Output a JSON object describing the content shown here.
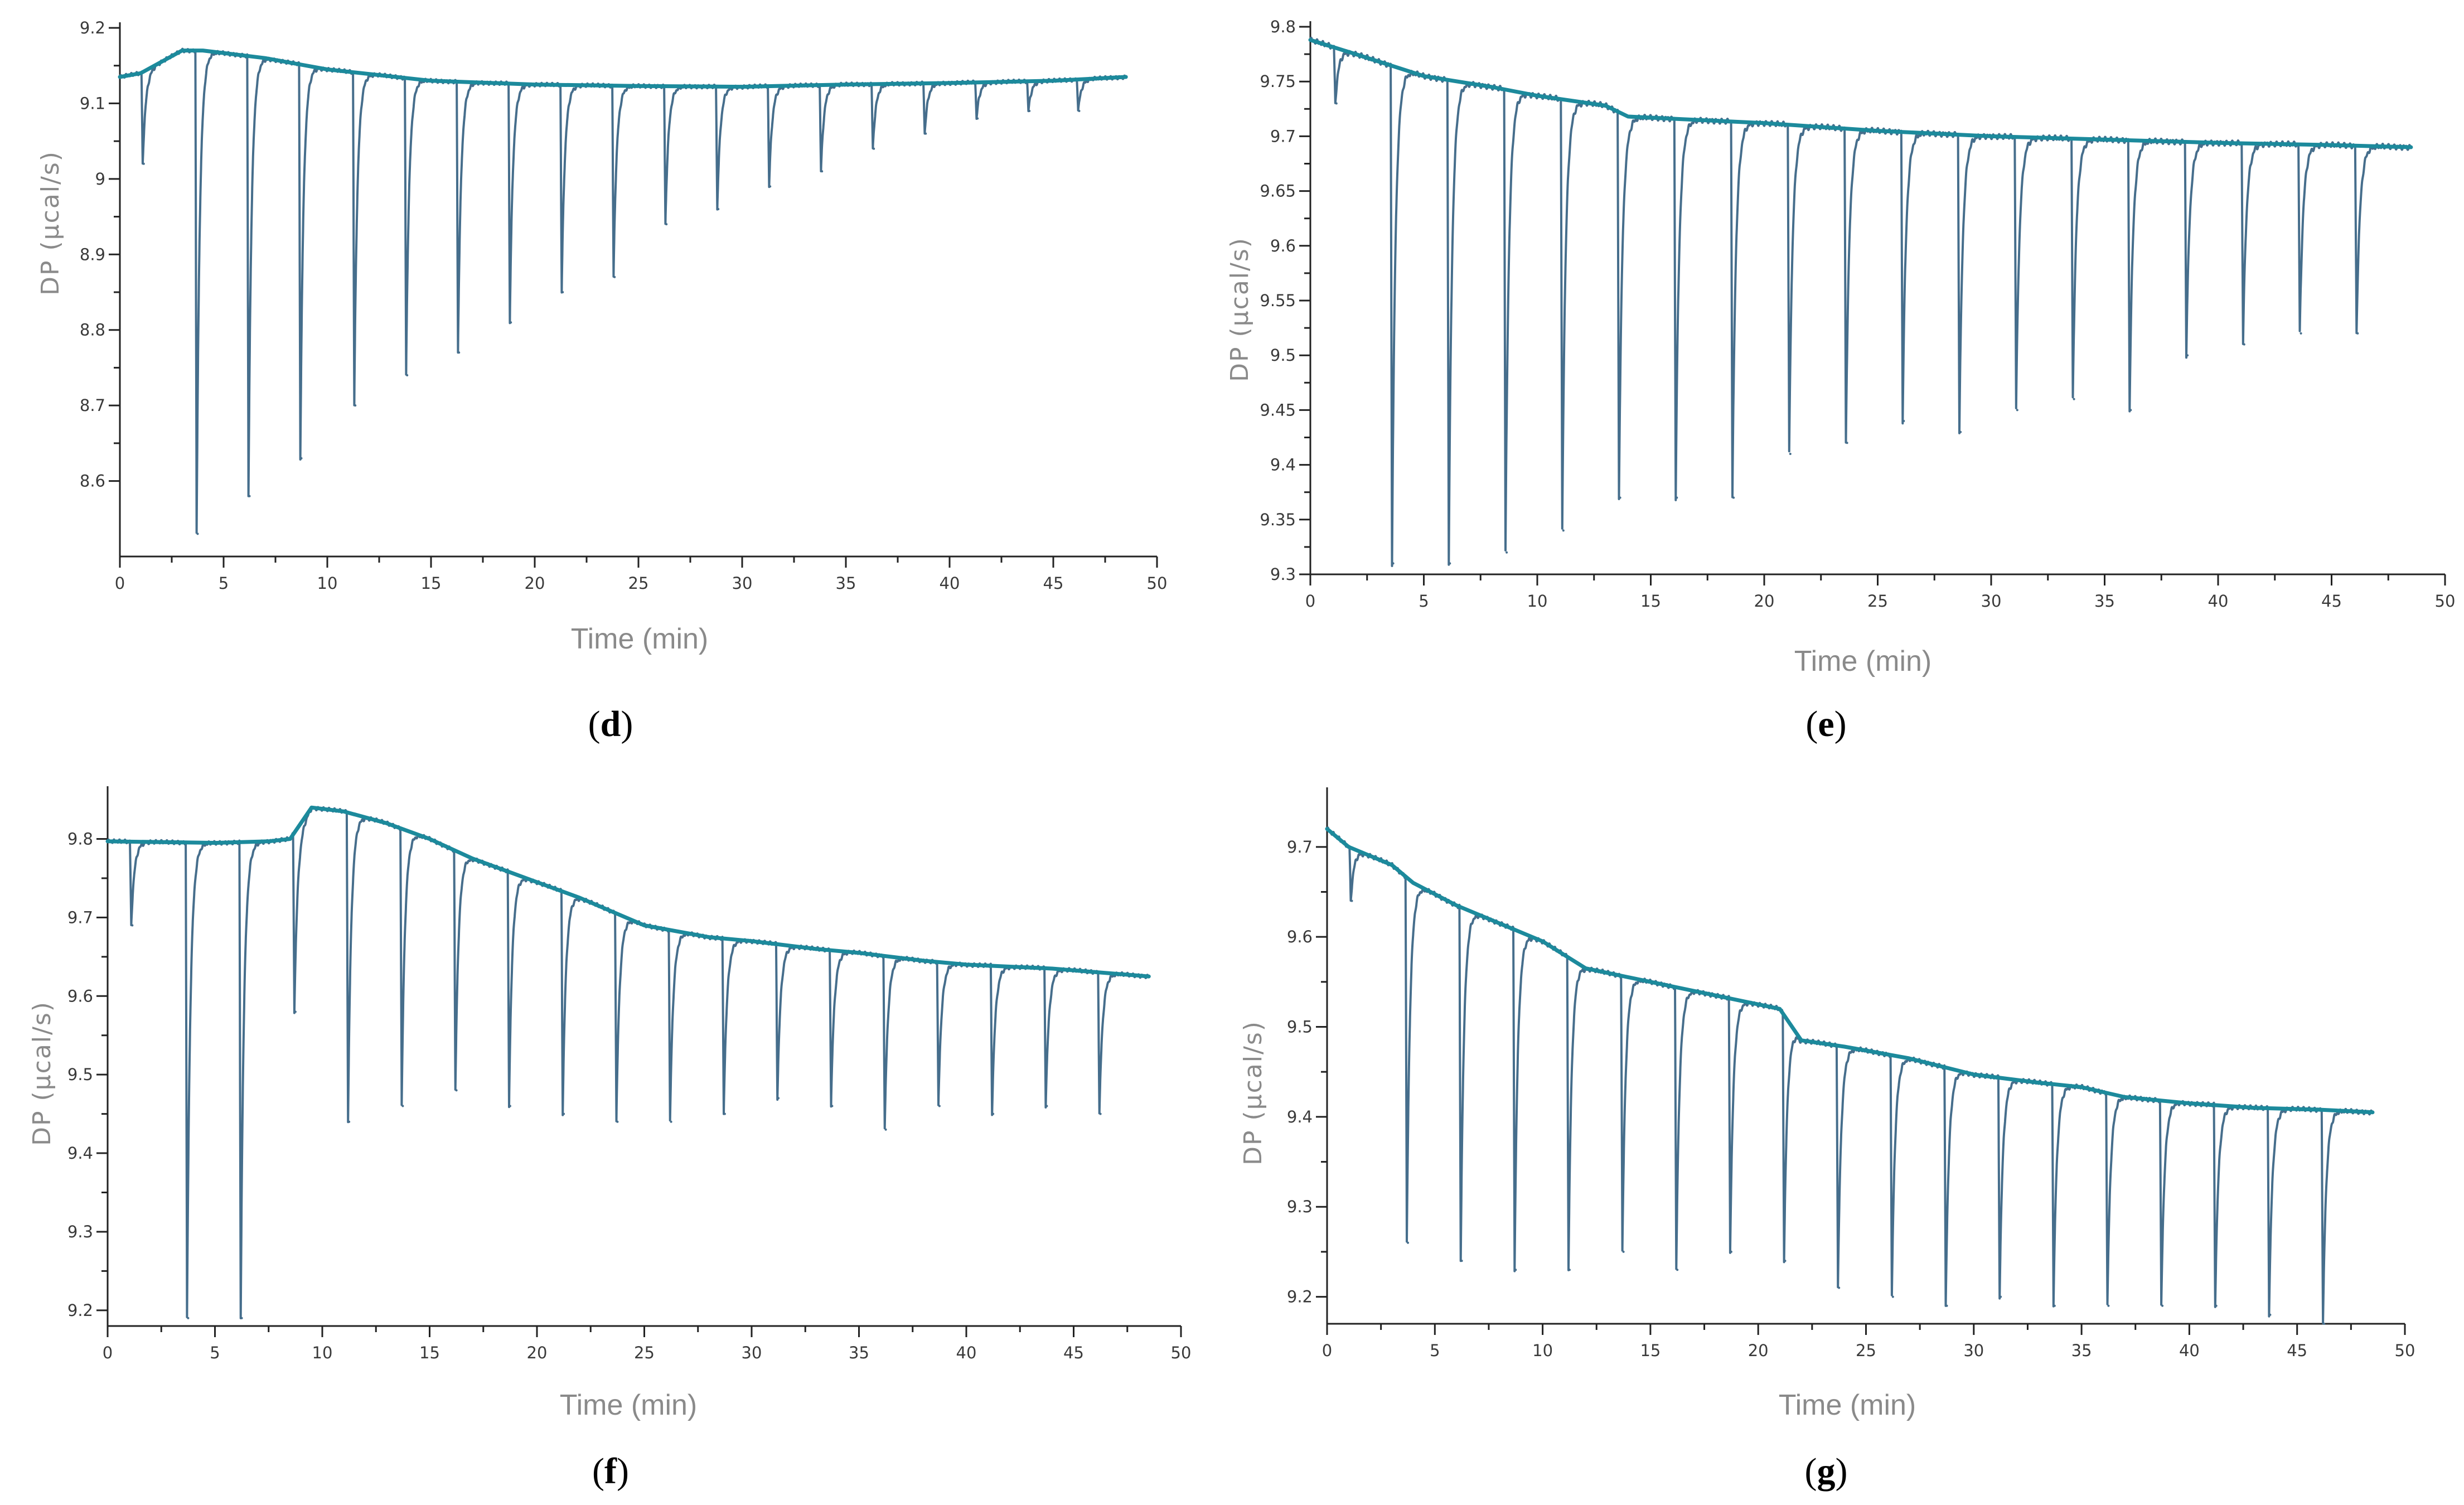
{
  "figure_panels": [
    "(d)",
    "(e)",
    "(f)",
    "(g)"
  ],
  "colors": {
    "raw_trace": "#466e8c",
    "baseline": "#1c8a9c",
    "axis": "#222222"
  },
  "chart_data": [
    {
      "type": "line",
      "panel": "d",
      "panel_label_bold": "d",
      "xlabel": "Time (min)",
      "ylabel": "DP (µcal/s)",
      "xlim": [
        0,
        50
      ],
      "ylim": [
        8.5,
        9.2
      ],
      "x_ticks": [
        "0",
        "5",
        "10",
        "15",
        "20",
        "25",
        "30",
        "35",
        "40",
        "45",
        "50"
      ],
      "y_ticks": [
        "8.6",
        "8.7",
        "8.8",
        "8.9",
        "9",
        "9.1",
        "9.2"
      ],
      "y_tick_values": [
        8.6,
        8.7,
        8.8,
        8.9,
        9.0,
        9.1,
        9.2
      ],
      "baseline_points": [
        [
          0,
          9.135
        ],
        [
          1,
          9.14
        ],
        [
          3,
          9.17
        ],
        [
          4,
          9.17
        ],
        [
          7,
          9.16
        ],
        [
          10,
          9.145
        ],
        [
          15,
          9.13
        ],
        [
          20,
          9.125
        ],
        [
          25,
          9.123
        ],
        [
          30,
          9.122
        ],
        [
          35,
          9.125
        ],
        [
          40,
          9.127
        ],
        [
          45,
          9.13
        ],
        [
          48.5,
          9.135
        ]
      ],
      "injection_times": [
        1.1,
        3.7,
        6.2,
        8.7,
        11.3,
        13.8,
        16.3,
        18.8,
        21.3,
        23.8,
        26.3,
        28.8,
        31.3,
        33.8,
        36.3,
        38.8,
        41.3,
        43.8,
        46.2
      ],
      "peak_minima": [
        9.02,
        8.53,
        8.58,
        8.63,
        8.7,
        8.74,
        8.77,
        8.81,
        8.85,
        8.87,
        8.94,
        8.96,
        8.99,
        9.01,
        9.04,
        9.06,
        9.08,
        9.09,
        9.09
      ]
    },
    {
      "type": "line",
      "panel": "e",
      "panel_label_bold": "e",
      "xlabel": "Time (min)",
      "ylabel": "DP (µcal/s)",
      "xlim": [
        0,
        50
      ],
      "ylim": [
        9.3,
        9.8
      ],
      "x_ticks": [
        "0",
        "5",
        "10",
        "15",
        "20",
        "25",
        "30",
        "35",
        "40",
        "45",
        "50"
      ],
      "y_ticks": [
        "9.3",
        "9.35",
        "9.4",
        "9.45",
        "9.5",
        "9.55",
        "9.6",
        "9.65",
        "9.7",
        "9.75",
        "9.8"
      ],
      "y_tick_values": [
        9.3,
        9.35,
        9.4,
        9.45,
        9.5,
        9.55,
        9.6,
        9.65,
        9.7,
        9.75,
        9.8
      ],
      "baseline_points": [
        [
          0,
          9.788
        ],
        [
          2,
          9.775
        ],
        [
          5,
          9.755
        ],
        [
          8,
          9.745
        ],
        [
          10,
          9.737
        ],
        [
          13,
          9.728
        ],
        [
          14,
          9.718
        ],
        [
          16,
          9.716
        ],
        [
          20,
          9.712
        ],
        [
          25,
          9.705
        ],
        [
          30,
          9.7
        ],
        [
          35,
          9.697
        ],
        [
          40,
          9.694
        ],
        [
          45,
          9.692
        ],
        [
          48.5,
          9.69
        ]
      ],
      "injection_times": [
        1.1,
        3.6,
        6.1,
        8.6,
        11.1,
        13.6,
        16.1,
        18.6,
        21.1,
        23.6,
        26.1,
        28.6,
        31.1,
        33.6,
        36.1,
        38.6,
        41.1,
        43.6,
        46.1
      ],
      "peak_minima": [
        9.73,
        9.31,
        9.31,
        9.32,
        9.34,
        9.37,
        9.37,
        9.37,
        9.41,
        9.42,
        9.44,
        9.43,
        9.45,
        9.46,
        9.45,
        9.5,
        9.51,
        9.52,
        9.52
      ]
    },
    {
      "type": "line",
      "panel": "f",
      "panel_label_bold": "f",
      "xlabel": "Time (min)",
      "ylabel": "DP (µcal/s)",
      "xlim": [
        0,
        50
      ],
      "ylim": [
        9.18,
        9.86
      ],
      "x_ticks": [
        "0",
        "5",
        "10",
        "15",
        "20",
        "25",
        "30",
        "35",
        "40",
        "45",
        "50"
      ],
      "y_ticks": [
        "9.2",
        "9.3",
        "9.4",
        "9.5",
        "9.6",
        "9.7",
        "9.8"
      ],
      "y_tick_values": [
        9.2,
        9.3,
        9.4,
        9.5,
        9.6,
        9.7,
        9.8
      ],
      "baseline_points": [
        [
          0,
          9.797
        ],
        [
          5,
          9.795
        ],
        [
          7.5,
          9.797
        ],
        [
          8.5,
          9.8
        ],
        [
          9.5,
          9.84
        ],
        [
          11,
          9.835
        ],
        [
          13,
          9.82
        ],
        [
          15,
          9.8
        ],
        [
          17,
          9.775
        ],
        [
          20,
          9.745
        ],
        [
          22,
          9.725
        ],
        [
          25,
          9.69
        ],
        [
          28,
          9.675
        ],
        [
          30,
          9.67
        ],
        [
          33,
          9.66
        ],
        [
          35,
          9.655
        ],
        [
          38,
          9.645
        ],
        [
          40,
          9.64
        ],
        [
          44,
          9.635
        ],
        [
          48.5,
          9.625
        ]
      ],
      "injection_times": [
        1.1,
        3.7,
        6.2,
        8.7,
        11.2,
        13.7,
        16.2,
        18.7,
        21.2,
        23.7,
        26.2,
        28.7,
        31.2,
        33.7,
        36.2,
        38.7,
        41.2,
        43.7,
        46.2
      ],
      "peak_minima": [
        9.69,
        9.19,
        9.19,
        9.58,
        9.44,
        9.46,
        9.48,
        9.46,
        9.45,
        9.44,
        9.44,
        9.45,
        9.47,
        9.46,
        9.43,
        9.46,
        9.45,
        9.46,
        9.45
      ]
    },
    {
      "type": "line",
      "panel": "g",
      "panel_label_bold": "g",
      "xlabel": "Time (min)",
      "ylabel": "DP (µcal/s)",
      "xlim": [
        0,
        50
      ],
      "ylim": [
        9.17,
        9.76
      ],
      "x_ticks": [
        "0",
        "5",
        "10",
        "15",
        "20",
        "25",
        "30",
        "35",
        "40",
        "45",
        "50"
      ],
      "y_ticks": [
        "9.2",
        "9.3",
        "9.4",
        "9.5",
        "9.6",
        "9.7"
      ],
      "y_tick_values": [
        9.2,
        9.3,
        9.4,
        9.5,
        9.6,
        9.7
      ],
      "baseline_points": [
        [
          0,
          9.72
        ],
        [
          1,
          9.7
        ],
        [
          3,
          9.68
        ],
        [
          4,
          9.66
        ],
        [
          6,
          9.635
        ],
        [
          8,
          9.615
        ],
        [
          10,
          9.595
        ],
        [
          12,
          9.565
        ],
        [
          15,
          9.55
        ],
        [
          18,
          9.535
        ],
        [
          20,
          9.525
        ],
        [
          21,
          9.52
        ],
        [
          22,
          9.485
        ],
        [
          24,
          9.478
        ],
        [
          27,
          9.465
        ],
        [
          30,
          9.447
        ],
        [
          33,
          9.438
        ],
        [
          35,
          9.433
        ],
        [
          37,
          9.422
        ],
        [
          40,
          9.415
        ],
        [
          43,
          9.41
        ],
        [
          46,
          9.408
        ],
        [
          48.5,
          9.405
        ]
      ],
      "injection_times": [
        1.1,
        3.7,
        6.2,
        8.7,
        11.2,
        13.7,
        16.2,
        18.7,
        21.2,
        23.7,
        26.2,
        28.7,
        31.2,
        33.7,
        36.2,
        38.7,
        41.2,
        43.7,
        46.2
      ],
      "peak_minima": [
        9.64,
        9.26,
        9.24,
        9.23,
        9.23,
        9.25,
        9.23,
        9.25,
        9.24,
        9.21,
        9.2,
        9.19,
        9.2,
        9.19,
        9.19,
        9.19,
        9.19,
        9.18,
        9.17
      ]
    }
  ]
}
